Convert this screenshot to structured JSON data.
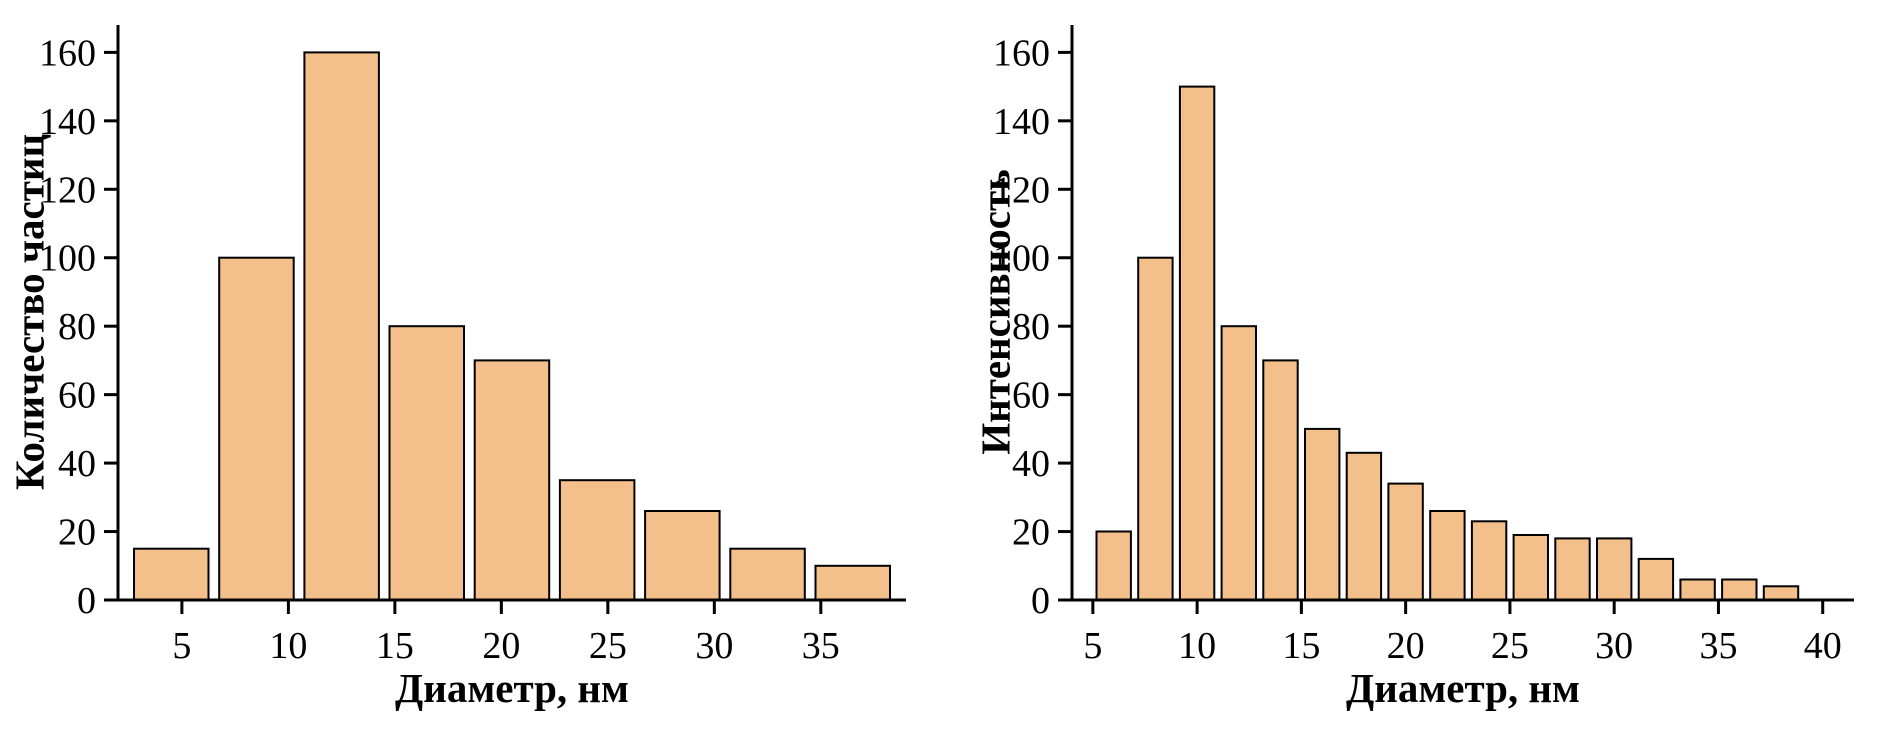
{
  "page": {
    "background_color": "#ffffff",
    "text_color": "#000000"
  },
  "chart_data": [
    {
      "type": "bar",
      "title": "",
      "ylabel": "Количество частиц",
      "xlabel": "Диаметр, нм",
      "x": [
        4.5,
        8.5,
        12.5,
        16.5,
        20.5,
        24.5,
        28.5,
        32.5,
        36.5
      ],
      "values": [
        15,
        100,
        160,
        80,
        70,
        35,
        26,
        15,
        10
      ],
      "bar_width": 3.5,
      "xlim": [
        2,
        39
      ],
      "ylim": [
        0,
        168
      ],
      "xticks": [
        5,
        10,
        15,
        20,
        25,
        30,
        35
      ],
      "yticks": [
        0,
        20,
        40,
        60,
        80,
        100,
        120,
        140,
        160
      ],
      "grid": false,
      "legend": "none",
      "bar_fill": "#f3bf8b",
      "bar_stroke": "#000000",
      "axis_color": "#000000"
    },
    {
      "type": "bar",
      "title": "",
      "ylabel": "Интенсивность",
      "xlabel": "Диаметр, нм",
      "x": [
        6,
        8,
        10,
        12,
        14,
        16,
        18,
        20,
        22,
        24,
        26,
        28,
        30,
        32,
        34,
        36,
        38
      ],
      "values": [
        20,
        100,
        150,
        80,
        70,
        50,
        43,
        34,
        26,
        23,
        19,
        18,
        18,
        12,
        6,
        6,
        4
      ],
      "bar_width": 1.65,
      "xlim": [
        4,
        41.5
      ],
      "ylim": [
        0,
        168
      ],
      "xticks": [
        5,
        10,
        15,
        20,
        25,
        30,
        35,
        40
      ],
      "yticks": [
        0,
        20,
        40,
        60,
        80,
        100,
        120,
        140,
        160
      ],
      "grid": false,
      "legend": "none",
      "bar_fill": "#f3bf8b",
      "bar_stroke": "#000000",
      "axis_color": "#000000"
    }
  ]
}
